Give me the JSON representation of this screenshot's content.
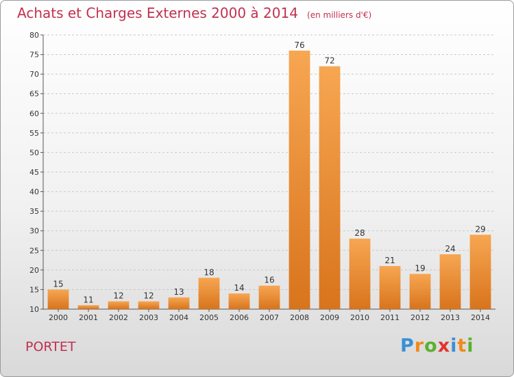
{
  "header": {
    "title": "Achats et Charges Externes 2000 à 2014",
    "unit": "(en milliers d'€)"
  },
  "place": "PORTET",
  "logo": {
    "letters": [
      "P",
      "r",
      "o",
      "x",
      "i",
      "t",
      "i"
    ]
  },
  "colors": {
    "title": "#c0304f",
    "bar_light": "#f7a652",
    "bar_dark": "#d8741c",
    "logo": [
      "#3a8fd4",
      "#f08a1c",
      "#5ab02f",
      "#e2332d",
      "#3a8fd4",
      "#f08a1c",
      "#5ab02f"
    ]
  },
  "chart_data": {
    "type": "bar",
    "categories": [
      "2000",
      "2001",
      "2002",
      "2003",
      "2004",
      "2005",
      "2006",
      "2007",
      "2008",
      "2009",
      "2010",
      "2011",
      "2012",
      "2013",
      "2014"
    ],
    "values": [
      15,
      11,
      12,
      12,
      13,
      18,
      14,
      16,
      76,
      72,
      28,
      21,
      19,
      24,
      29
    ],
    "ylim": [
      10,
      80
    ],
    "yticks": [
      10,
      15,
      20,
      25,
      30,
      35,
      40,
      45,
      50,
      55,
      60,
      65,
      70,
      75,
      80
    ],
    "grid": "dashed horizontal",
    "data_labels": true
  }
}
